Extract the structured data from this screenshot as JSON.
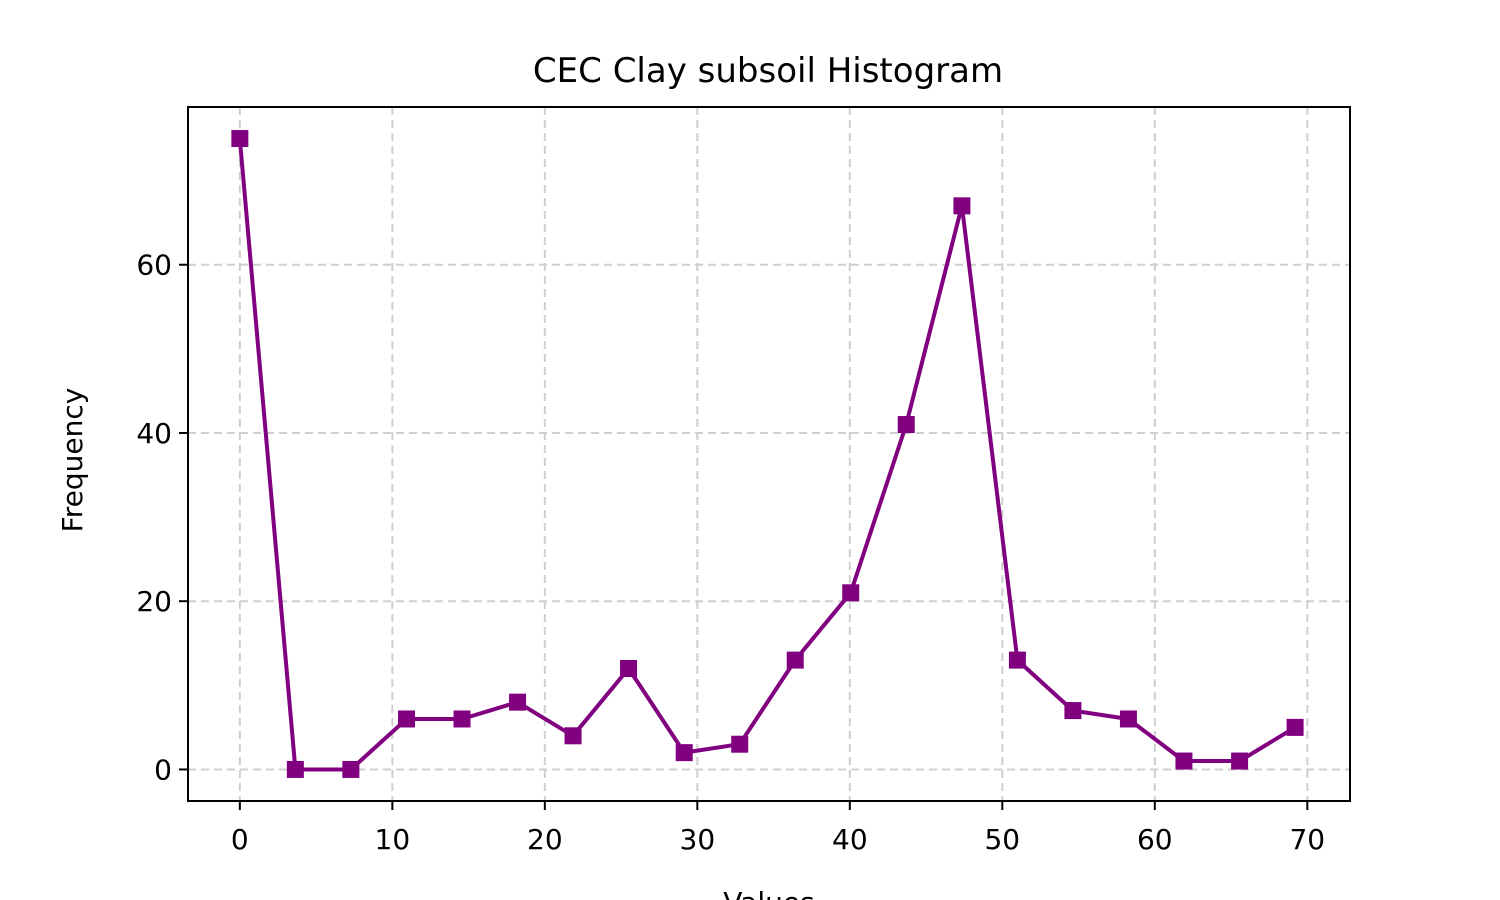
{
  "chart_data": {
    "type": "line",
    "title": "CEC Clay subsoil Histogram",
    "xlabel": "Values",
    "ylabel": "Frequency",
    "xlim": [
      -3.4,
      72.8
    ],
    "ylim": [
      -3.75,
      78.75
    ],
    "xticks": [
      0,
      10,
      20,
      30,
      40,
      50,
      60,
      70
    ],
    "yticks": [
      0,
      20,
      40,
      60
    ],
    "grid": true,
    "series": [
      {
        "color": "#800080",
        "marker": "square",
        "x": [
          0,
          3.64,
          7.28,
          10.93,
          14.57,
          18.21,
          21.85,
          25.49,
          29.14,
          32.78,
          36.42,
          40.06,
          43.7,
          47.35,
          50.99,
          54.63,
          58.27,
          61.91,
          65.56,
          69.2
        ],
        "values": [
          75,
          0,
          0,
          6,
          6,
          8,
          4,
          12,
          2,
          3,
          13,
          21,
          41,
          67,
          13,
          7,
          6,
          1,
          1,
          5
        ]
      }
    ]
  }
}
